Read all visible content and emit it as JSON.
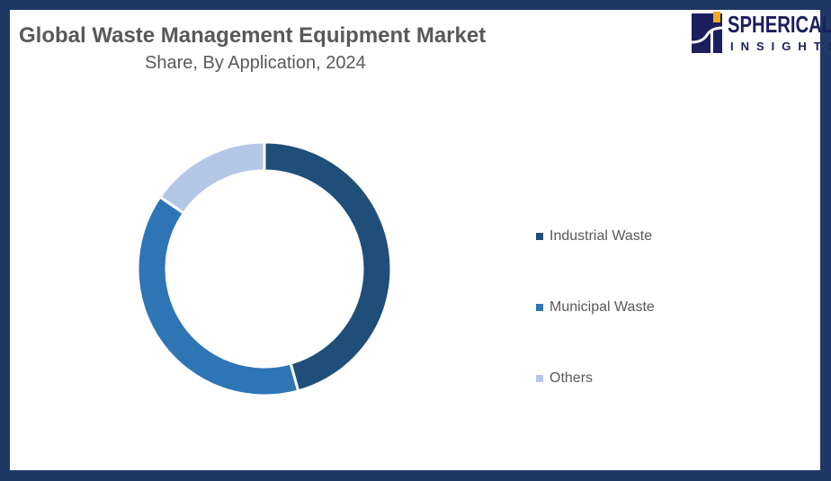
{
  "header": {
    "title": "Global Waste Management Equipment Market",
    "subtitle": "Share, By Application, 2024"
  },
  "logo": {
    "line1": "SPHERICAL",
    "line2": "INSIGHTS"
  },
  "chart_data": {
    "type": "pie",
    "donut": true,
    "title": "Global Waste Management Equipment Market",
    "subtitle": "Share, By Application, 2024",
    "categories": [
      "Industrial Waste",
      "Municipal Waste",
      "Others"
    ],
    "values": [
      45.7,
      38.9,
      15.4
    ],
    "unit": "%",
    "colors": [
      "#1f4e79",
      "#2e75b6",
      "#b4c7e7"
    ],
    "legend_position": "right"
  },
  "legend": {
    "items": [
      {
        "label": "Industrial Waste",
        "color": "#1f4e79"
      },
      {
        "label": "Municipal Waste",
        "color": "#2e75b6"
      },
      {
        "label": "Others",
        "color": "#b4c7e7"
      }
    ]
  }
}
